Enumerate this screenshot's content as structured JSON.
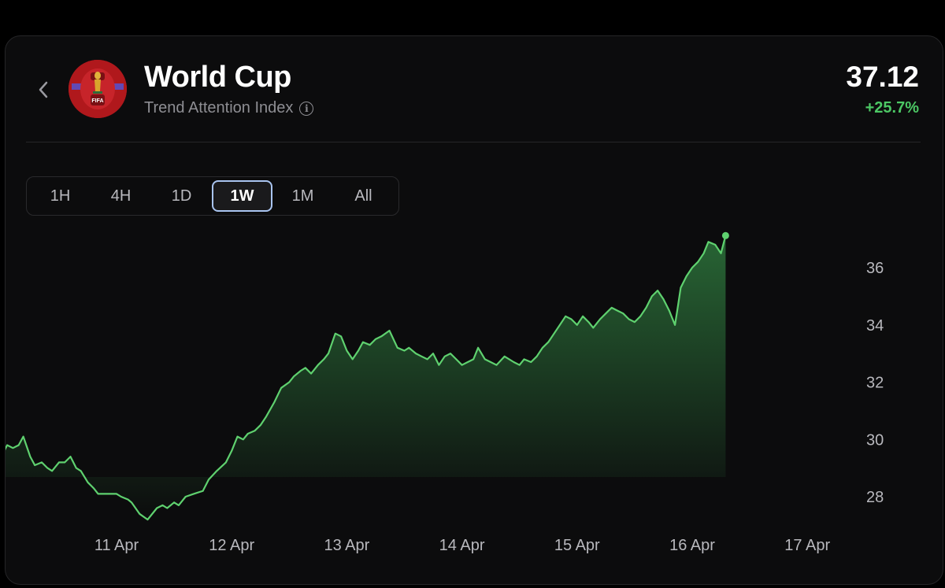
{
  "header": {
    "title": "World Cup",
    "subtitle": "Trend Attention Index",
    "value": "37.12",
    "change": "+25.7%",
    "logo_text": "FIFA"
  },
  "icons": {
    "back": "chevron-left-icon",
    "info": "info-icon"
  },
  "range_tabs": [
    {
      "label": "1H",
      "active": false
    },
    {
      "label": "4H",
      "active": false
    },
    {
      "label": "1D",
      "active": false
    },
    {
      "label": "1W",
      "active": true
    },
    {
      "label": "1M",
      "active": false
    },
    {
      "label": "All",
      "active": false
    }
  ],
  "colors": {
    "line": "#5fd16f",
    "positive": "#4cc764",
    "background": "#0c0c0d",
    "logo": "#b0181c"
  },
  "chart_data": {
    "type": "area",
    "title": "",
    "xlabel": "",
    "ylabel": "",
    "x_ticks": [
      "11 Apr",
      "12 Apr",
      "13 Apr",
      "14 Apr",
      "15 Apr",
      "16 Apr",
      "17 Apr"
    ],
    "y_ticks": [
      28,
      30,
      32,
      34,
      36
    ],
    "ylim": [
      27,
      38
    ],
    "grid": false,
    "legend": "none",
    "x_unit": "days after 10 Apr 00:00",
    "series": [
      {
        "x": [
          0.0,
          0.05,
          0.1,
          0.15,
          0.19,
          0.25,
          0.29,
          0.35,
          0.4,
          0.44,
          0.5,
          0.55,
          0.6,
          0.65,
          0.69,
          0.75,
          0.8,
          0.84,
          0.9,
          1.0,
          1.04,
          1.1,
          1.13,
          1.2,
          1.27,
          1.35,
          1.4,
          1.44,
          1.5,
          1.54,
          1.6,
          1.67,
          1.75,
          1.8,
          1.87,
          1.95,
          2.0,
          2.05,
          2.1,
          2.14,
          2.2,
          2.25,
          2.3,
          2.37,
          2.43,
          2.5,
          2.54,
          2.6,
          2.64,
          2.69,
          2.75,
          2.8,
          2.84,
          2.9,
          2.95,
          3.0,
          3.05,
          3.1,
          3.14,
          3.2,
          3.25,
          3.3,
          3.37,
          3.44,
          3.5,
          3.54,
          3.6,
          3.65,
          3.7,
          3.75,
          3.8,
          3.85,
          3.9,
          3.95,
          4.0,
          4.05,
          4.1,
          4.14,
          4.2,
          4.25,
          4.3,
          4.37,
          4.45,
          4.5,
          4.54,
          4.6,
          4.65,
          4.7,
          4.75,
          4.8,
          4.85,
          4.9,
          4.95,
          5.0,
          5.05,
          5.1,
          5.14,
          5.2,
          5.25,
          5.3,
          5.35,
          5.4,
          5.45,
          5.5,
          5.55,
          5.6,
          5.65,
          5.7,
          5.75,
          5.8,
          5.85,
          5.87,
          5.9,
          5.95,
          6.0,
          6.05,
          6.1,
          6.14,
          6.2,
          6.25,
          6.29
        ],
        "values": [
          29.4,
          29.8,
          29.7,
          29.8,
          30.1,
          29.4,
          29.1,
          29.2,
          29.0,
          28.9,
          29.2,
          29.2,
          29.4,
          29.0,
          28.9,
          28.5,
          28.3,
          28.1,
          28.1,
          28.1,
          28.0,
          27.9,
          27.8,
          27.4,
          27.2,
          27.6,
          27.7,
          27.6,
          27.8,
          27.7,
          28.0,
          28.1,
          28.2,
          28.6,
          28.9,
          29.2,
          29.6,
          30.1,
          30.0,
          30.2,
          30.3,
          30.5,
          30.8,
          31.3,
          31.8,
          32.0,
          32.2,
          32.4,
          32.5,
          32.3,
          32.6,
          32.8,
          33.0,
          33.7,
          33.6,
          33.1,
          32.8,
          33.1,
          33.4,
          33.3,
          33.5,
          33.6,
          33.8,
          33.2,
          33.1,
          33.2,
          33.0,
          32.9,
          32.8,
          33.0,
          32.6,
          32.9,
          33.0,
          32.8,
          32.6,
          32.7,
          32.8,
          33.2,
          32.8,
          32.7,
          32.6,
          32.9,
          32.7,
          32.6,
          32.8,
          32.7,
          32.9,
          33.2,
          33.4,
          33.7,
          34.0,
          34.3,
          34.2,
          34.0,
          34.3,
          34.1,
          33.9,
          34.2,
          34.4,
          34.6,
          34.5,
          34.4,
          34.2,
          34.1,
          34.3,
          34.6,
          35.0,
          35.2,
          34.9,
          34.5,
          34.0,
          34.5,
          35.3,
          35.7,
          36.0,
          36.2,
          36.5,
          36.9,
          36.8,
          36.5,
          37.12
        ]
      }
    ]
  }
}
